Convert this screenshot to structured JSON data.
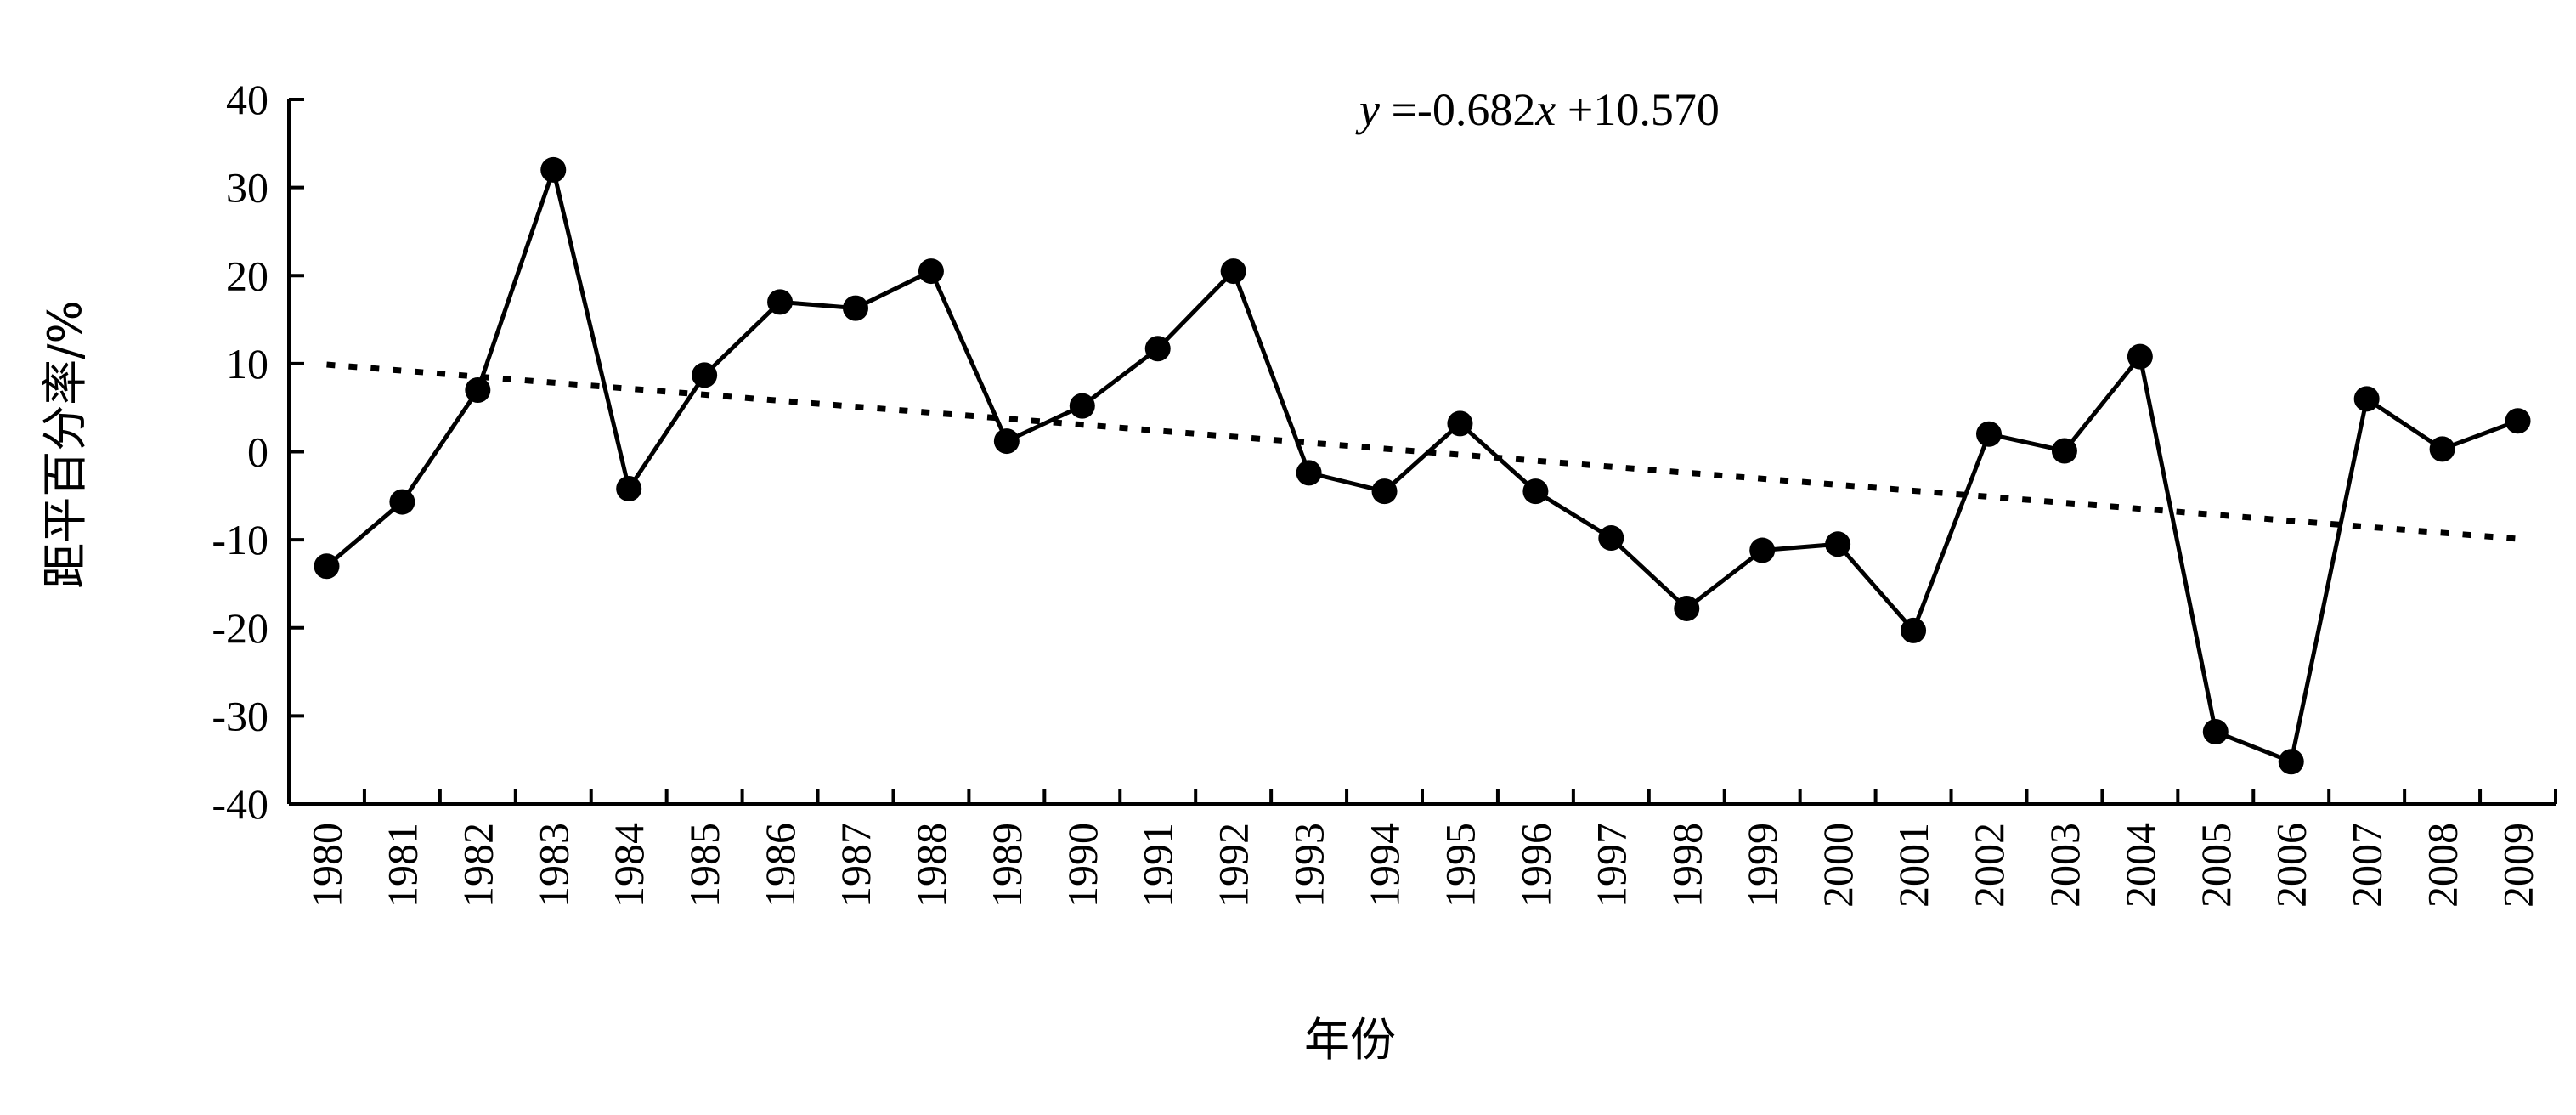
{
  "chart_data": {
    "type": "line",
    "title": "",
    "xlabel": "年份",
    "ylabel": "距平百分率/%",
    "ylim": [
      -40,
      40
    ],
    "yticks": [
      -40,
      -30,
      -20,
      -10,
      0,
      10,
      20,
      30,
      40
    ],
    "grid": false,
    "legend": "none",
    "annotation": {
      "var_y": "y",
      "mid": " =-0.682",
      "var_x": "x",
      "tail": " +10.570"
    },
    "categories": [
      "1980",
      "1981",
      "1982",
      "1983",
      "1984",
      "1985",
      "1986",
      "1987",
      "1988",
      "1989",
      "1990",
      "1991",
      "1992",
      "1993",
      "1994",
      "1995",
      "1996",
      "1997",
      "1998",
      "1999",
      "2000",
      "2001",
      "2002",
      "2003",
      "2004",
      "2005",
      "2006",
      "2007",
      "2008",
      "2009"
    ],
    "series": [
      {
        "style": "line-with-markers",
        "color": "#000000",
        "values": [
          -13,
          -5.7,
          7,
          32,
          -4.2,
          8.7,
          17,
          16.3,
          20.5,
          1.2,
          5.2,
          11.7,
          20.5,
          -2.4,
          -4.5,
          3.2,
          -4.5,
          -9.8,
          -17.8,
          -11.2,
          -10.5,
          -20.3,
          2,
          0.1,
          10.8,
          -31.8,
          -35.2,
          6,
          0.3,
          3.5
        ]
      }
    ],
    "trendline": {
      "style": "dotted",
      "color": "#000000",
      "slope": -0.682,
      "intercept": 10.57
    }
  }
}
